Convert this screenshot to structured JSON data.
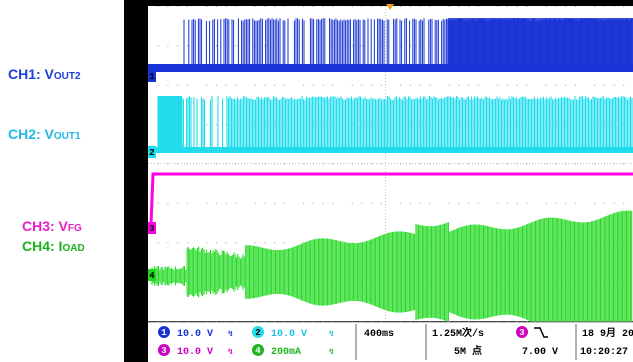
{
  "labels": [
    {
      "id": "ch1",
      "prefix": "CH1: V",
      "sub": "OUT2",
      "color": "#1c3fd6"
    },
    {
      "id": "ch2",
      "prefix": "CH2: V",
      "sub": "OUT1",
      "color": "#22b8e6"
    },
    {
      "id": "ch3",
      "prefix": "CH3: V",
      "sub": "FG",
      "color": "#e61ec8"
    },
    {
      "id": "ch4",
      "prefix": "CH4: I",
      "sub": "OAD",
      "color": "#18b418"
    }
  ],
  "chart_data": {
    "type": "line",
    "title": "",
    "xlabel": "",
    "ylabel": "",
    "grid": true,
    "x_divisions": 10,
    "y_divisions": 8,
    "trigger_level_marker": "T",
    "series": [
      {
        "name": "CH1: VOUT2",
        "color": "#1733d6",
        "marker": "1",
        "volts_per_div": "10.0 V",
        "description_values": [
          0,
          0,
          1,
          1
        ]
      },
      {
        "name": "CH2: VOUT1",
        "color": "#20dcec",
        "marker": "2",
        "volts_per_div": "10.0 V",
        "description_values": [
          0,
          1,
          1,
          1
        ]
      },
      {
        "name": "CH3: VFG",
        "color": "#ff00e6",
        "marker": "3",
        "volts_per_div": "10.0 V",
        "description_values": [
          0,
          1,
          1,
          1
        ]
      },
      {
        "name": "CH4: IOAD",
        "color": "#1fd91f",
        "marker": "4",
        "volts_per_div": "200mA",
        "description_values": [
          0,
          0.3,
          0.4,
          0.6
        ]
      }
    ],
    "readout": {
      "ch1_scale": "10.0 V",
      "ch2_scale": "10.0 V",
      "ch3_scale": "10.0 V",
      "ch4_scale": "200mA",
      "bw_symbol": "⁰",
      "timebase": "400ms",
      "sample_rate": "1.25M次/s",
      "record_length": "5M 点",
      "trigger_channel": "3",
      "trigger_slope": "╲",
      "trigger_level": "7.00 V",
      "date": "18 9月 20",
      "time": "10:20:27"
    }
  }
}
